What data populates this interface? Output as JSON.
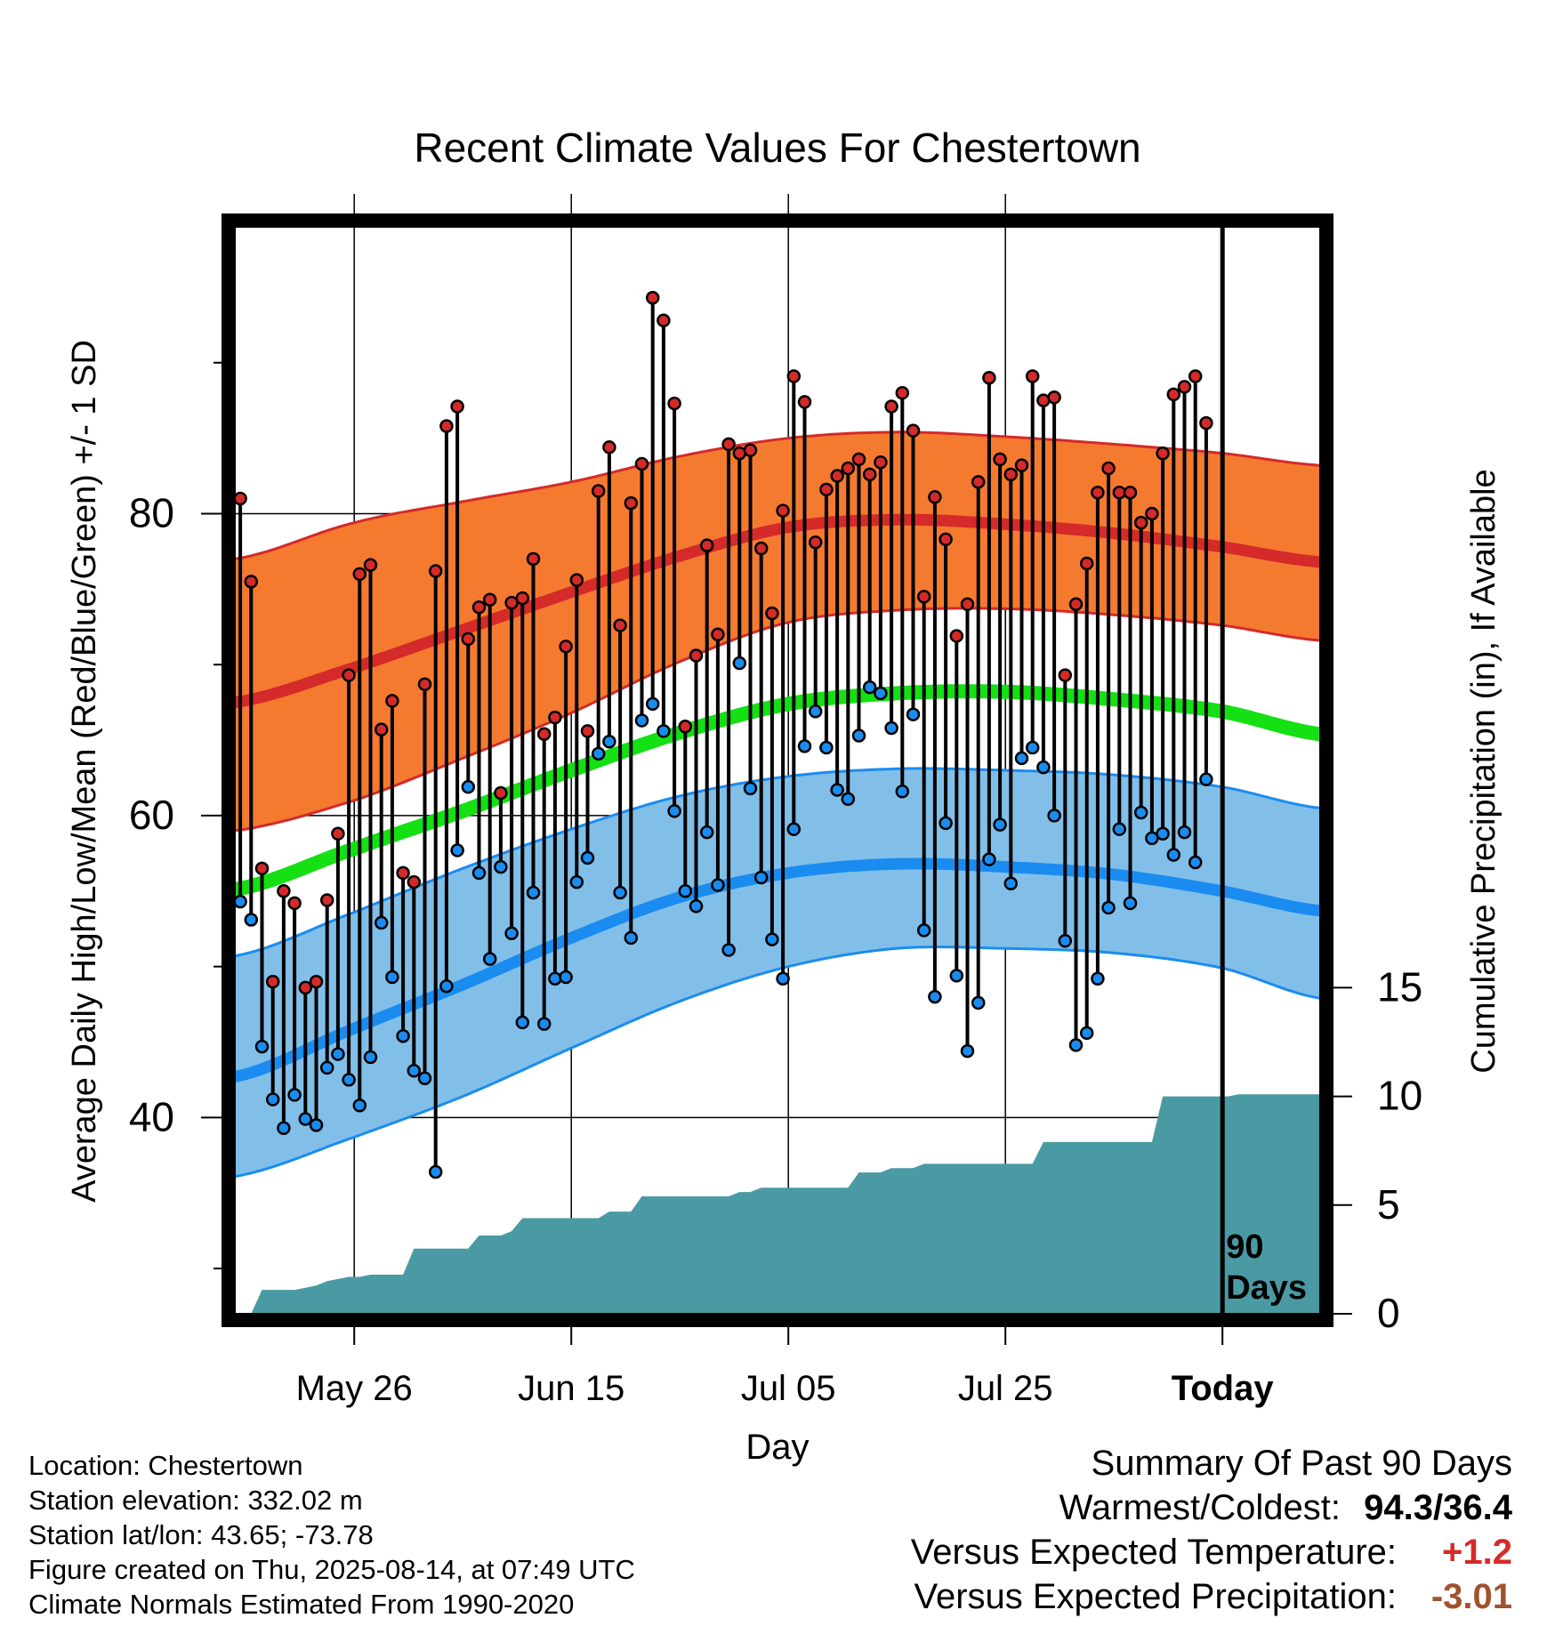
{
  "chart_data": {
    "type": "line",
    "title": "Recent Climate Values For Chestertown",
    "xlabel": "Day",
    "ylabel_left": "Average Daily High/Low/Mean (Red/Blue/Green) +/- 1 SD",
    "ylabel_right": "Cumulative Precipitation (in), If Available",
    "x_ticks": [
      "May 26",
      "Jun 15",
      "Jul 05",
      "Jul 25",
      "Today"
    ],
    "x_tick_days": [
      -80,
      -60,
      -40,
      -20,
      0
    ],
    "x_range_days": [
      -91,
      9
    ],
    "y_left_ticks": [
      "40",
      "60",
      "80"
    ],
    "y_left_range": [
      27,
      99
    ],
    "y_right_ticks": [
      "0",
      "5",
      "10",
      "15"
    ],
    "y_right_range": [
      0,
      50
    ],
    "today_marker_label": "90\nDays",
    "grid": true,
    "colors": {
      "high_band": "#f47a30",
      "high_mean": "#d42a2a",
      "high_edge": "#d42a2a",
      "low_band": "#82bfe8",
      "low_mean": "#1a8cf0",
      "low_edge": "#1a8cf0",
      "mean_line": "#14e014",
      "precip": "#4a9aa3",
      "high_marker": "#d42a2a",
      "low_marker": "#1a8cf0"
    },
    "normals": {
      "days": [
        -91,
        -80,
        -70,
        -60,
        -50,
        -40,
        -30,
        -20,
        -10,
        0,
        9
      ],
      "high_mean": [
        67.5,
        69.8,
        72.3,
        74.8,
        77.2,
        79.1,
        79.6,
        79.3,
        78.7,
        77.8,
        76.8
      ],
      "high_upper": [
        77.0,
        79.4,
        80.8,
        82.1,
        83.8,
        85.0,
        85.4,
        85.1,
        84.6,
        84.0,
        83.2
      ],
      "high_lower": [
        59.0,
        61.0,
        63.8,
        66.8,
        70.2,
        72.8,
        73.6,
        73.7,
        73.3,
        72.6,
        71.6
      ],
      "low_mean": [
        42.7,
        45.9,
        48.8,
        51.9,
        54.6,
        56.2,
        56.8,
        56.6,
        56.1,
        55.0,
        53.7
      ],
      "low_upper": [
        50.7,
        53.6,
        56.5,
        59.1,
        61.3,
        62.6,
        63.1,
        63.0,
        62.7,
        61.9,
        60.5
      ],
      "low_lower": [
        36.1,
        38.7,
        41.4,
        44.6,
        47.7,
        50.0,
        51.2,
        51.2,
        50.9,
        49.9,
        47.9
      ],
      "mean": [
        55.1,
        57.8,
        60.3,
        63.0,
        65.5,
        67.4,
        68.1,
        68.2,
        67.7,
        66.9,
        65.4
      ]
    },
    "series": [
      {
        "name": "High",
        "values": [
          81.0,
          75.5,
          56.5,
          49.0,
          55.0,
          54.2,
          48.6,
          49.0,
          54.4,
          58.8,
          69.3,
          76.0,
          76.6,
          65.7,
          67.6,
          56.2,
          55.6,
          68.7,
          76.2,
          85.8,
          87.1,
          71.7,
          73.8,
          74.3,
          61.5,
          74.1,
          74.4,
          77.0,
          65.4,
          66.5,
          71.2,
          75.6,
          65.6,
          81.5,
          84.4,
          72.6,
          80.7,
          83.3,
          94.3,
          92.8,
          87.3,
          65.9,
          70.6,
          77.9,
          72.0,
          84.6,
          84.0,
          84.2,
          77.7,
          73.4,
          80.2,
          89.1,
          87.4,
          78.1,
          81.6,
          82.5,
          83.0,
          83.6,
          82.6,
          83.4,
          87.1,
          88.0,
          85.5,
          74.5,
          81.1,
          78.3,
          71.9,
          74.0,
          82.1,
          89.0,
          83.6,
          82.6,
          83.2,
          89.1,
          87.5,
          87.7,
          69.3,
          74.0,
          76.7,
          81.4,
          83.0,
          81.4,
          81.4,
          79.4,
          80.0,
          84.0,
          87.9,
          88.4,
          89.1,
          86.0
        ]
      },
      {
        "name": "Low",
        "values": [
          54.3,
          53.1,
          44.7,
          41.2,
          39.3,
          41.5,
          39.9,
          39.5,
          43.3,
          44.2,
          42.5,
          40.8,
          44.0,
          52.9,
          49.3,
          45.4,
          43.1,
          42.6,
          36.4,
          48.7,
          57.7,
          61.9,
          56.2,
          50.5,
          56.6,
          52.2,
          46.3,
          54.9,
          46.2,
          49.2,
          49.3,
          55.6,
          57.2,
          64.1,
          64.9,
          54.9,
          51.9,
          66.3,
          67.4,
          65.6,
          60.3,
          55.0,
          54.0,
          58.9,
          55.4,
          51.1,
          70.1,
          61.8,
          55.9,
          51.8,
          49.2,
          59.1,
          64.6,
          66.9,
          64.5,
          61.7,
          61.1,
          65.3,
          68.5,
          68.1,
          65.8,
          61.6,
          66.7,
          52.4,
          48.0,
          59.5,
          49.4,
          44.4,
          47.6,
          57.1,
          59.4,
          55.5,
          63.8,
          64.5,
          63.2,
          60.0,
          51.7,
          44.8,
          45.6,
          49.2,
          53.9,
          59.1,
          54.2,
          60.2,
          58.5,
          58.8,
          57.4,
          58.9,
          56.9,
          62.4
        ]
      },
      {
        "name": "Cumulative Precipitation",
        "values": [
          0.0,
          1.1,
          1.1,
          1.1,
          1.1,
          1.2,
          1.3,
          1.5,
          1.6,
          1.7,
          1.7,
          1.8,
          1.8,
          1.8,
          1.8,
          3.0,
          3.0,
          3.0,
          3.0,
          3.0,
          3.0,
          3.6,
          3.6,
          3.6,
          3.8,
          4.4,
          4.4,
          4.4,
          4.4,
          4.4,
          4.4,
          4.4,
          4.4,
          4.7,
          4.7,
          4.7,
          5.4,
          5.4,
          5.4,
          5.4,
          5.4,
          5.4,
          5.4,
          5.4,
          5.4,
          5.6,
          5.6,
          5.8,
          5.8,
          5.8,
          5.8,
          5.8,
          5.8,
          5.8,
          5.8,
          5.8,
          6.5,
          6.5,
          6.5,
          6.7,
          6.7,
          6.7,
          6.9,
          6.9,
          6.9,
          6.9,
          6.9,
          6.9,
          6.9,
          6.9,
          6.9,
          6.9,
          6.9,
          7.9,
          7.9,
          7.9,
          7.9,
          7.9,
          7.9,
          7.9,
          7.9,
          7.9,
          7.9,
          7.9,
          10.0,
          10.0,
          10.0,
          10.0,
          10.0,
          10.0,
          10.0,
          10.1,
          10.1,
          10.1,
          10.1,
          10.1,
          10.1,
          10.1,
          10.1,
          10.1,
          10.1
        ]
      }
    ]
  },
  "footer": {
    "location": "Location: Chestertown",
    "elevation": "Station elevation: 332.02 m",
    "latlon": "Station lat/lon: 43.65; -73.78",
    "created": "Figure created on Thu, 2025-08-14, at 07:49 UTC",
    "normals": "Climate Normals Estimated From 1990-2020"
  },
  "summary": {
    "title": "Summary Of Past 90 Days",
    "warmest_coldest_label": "Warmest/Coldest:",
    "warmest_coldest_value": "94.3/36.4",
    "temp_label": "Versus Expected Temperature:",
    "temp_value": "+1.2",
    "temp_color": "#d42a2a",
    "precip_label": "Versus Expected Precipitation:",
    "precip_value": "-3.01",
    "precip_color": "#a0522d"
  }
}
